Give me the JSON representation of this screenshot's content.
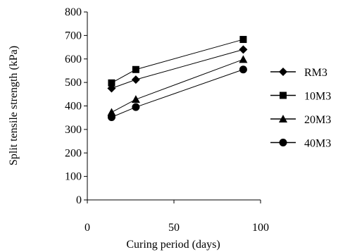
{
  "chart_data": {
    "type": "line",
    "xlabel": "Curing period (days)",
    "ylabel": "Split tensile strength (kPa)",
    "xlim": [
      0,
      100
    ],
    "ylim": [
      0,
      800
    ],
    "xticks": [
      0,
      50,
      100
    ],
    "yticks": [
      0,
      100,
      200,
      300,
      400,
      500,
      600,
      700,
      800
    ],
    "grid": false,
    "legend_position": "right",
    "x": [
      14,
      28,
      90
    ],
    "series": [
      {
        "name": "RM3",
        "marker": "diamond",
        "values": [
          475,
          512,
          640
        ]
      },
      {
        "name": "10M3",
        "marker": "square",
        "values": [
          498,
          555,
          683
        ]
      },
      {
        "name": "20M3",
        "marker": "triangle",
        "values": [
          373,
          428,
          598
        ]
      },
      {
        "name": "40M3",
        "marker": "circle",
        "values": [
          352,
          395,
          555
        ]
      }
    ],
    "colors": {
      "line": "#000000",
      "marker": "#000000"
    }
  }
}
